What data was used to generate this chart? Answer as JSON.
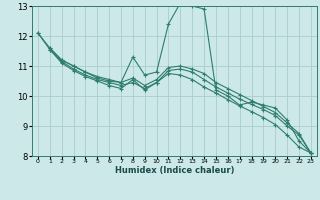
{
  "xlabel": "Humidex (Indice chaleur)",
  "bg_color": "#cce8e8",
  "grid_color": "#aacccc",
  "line_color": "#2e7d6e",
  "xlim": [
    -0.5,
    23.5
  ],
  "ylim": [
    8,
    13
  ],
  "yticks": [
    8,
    9,
    10,
    11,
    12,
    13
  ],
  "xticks": [
    0,
    1,
    2,
    3,
    4,
    5,
    6,
    7,
    8,
    9,
    10,
    11,
    12,
    13,
    14,
    15,
    16,
    17,
    18,
    19,
    20,
    21,
    22,
    23
  ],
  "series": [
    {
      "x": [
        0,
        1,
        2,
        3,
        4,
        5,
        6,
        7,
        8,
        9,
        10,
        11,
        12,
        13,
        14,
        15,
        16,
        17,
        18,
        19,
        20,
        21,
        22,
        23
      ],
      "y": [
        12.1,
        11.6,
        11.2,
        11.0,
        10.8,
        10.6,
        10.5,
        10.45,
        11.3,
        10.7,
        10.8,
        12.4,
        13.1,
        13.0,
        12.9,
        10.2,
        10.0,
        9.7,
        9.8,
        9.7,
        9.6,
        9.2,
        8.5,
        8.1
      ]
    },
    {
      "x": [
        1,
        2,
        3,
        4,
        5,
        6,
        7,
        8,
        9,
        10,
        11,
        12,
        13,
        14,
        15,
        16,
        17,
        18,
        19,
        20,
        21,
        22,
        23
      ],
      "y": [
        11.6,
        11.2,
        11.0,
        10.8,
        10.65,
        10.55,
        10.45,
        10.6,
        10.35,
        10.55,
        10.95,
        11.0,
        10.9,
        10.75,
        10.45,
        10.25,
        10.05,
        9.85,
        9.65,
        9.45,
        9.1,
        8.75,
        8.1
      ]
    },
    {
      "x": [
        1,
        2,
        3,
        4,
        5,
        6,
        7,
        8,
        9,
        10,
        11,
        12,
        13,
        14,
        15,
        16,
        17,
        18,
        19,
        20,
        21,
        22,
        23
      ],
      "y": [
        11.55,
        11.15,
        10.9,
        10.7,
        10.55,
        10.45,
        10.35,
        10.45,
        10.25,
        10.45,
        10.85,
        10.9,
        10.8,
        10.55,
        10.3,
        10.1,
        9.9,
        9.72,
        9.55,
        9.35,
        9.0,
        8.7,
        8.1
      ]
    },
    {
      "x": [
        0,
        1,
        2,
        3,
        4,
        5,
        6,
        7,
        8,
        9,
        10,
        11,
        12,
        13,
        14,
        15,
        16,
        17,
        18,
        19,
        20,
        21,
        22,
        23
      ],
      "y": [
        12.1,
        11.55,
        11.1,
        10.85,
        10.65,
        10.5,
        10.35,
        10.25,
        10.55,
        10.2,
        10.45,
        10.75,
        10.7,
        10.55,
        10.3,
        10.1,
        9.88,
        9.67,
        9.48,
        9.28,
        9.05,
        8.7,
        8.3,
        8.1
      ]
    }
  ]
}
